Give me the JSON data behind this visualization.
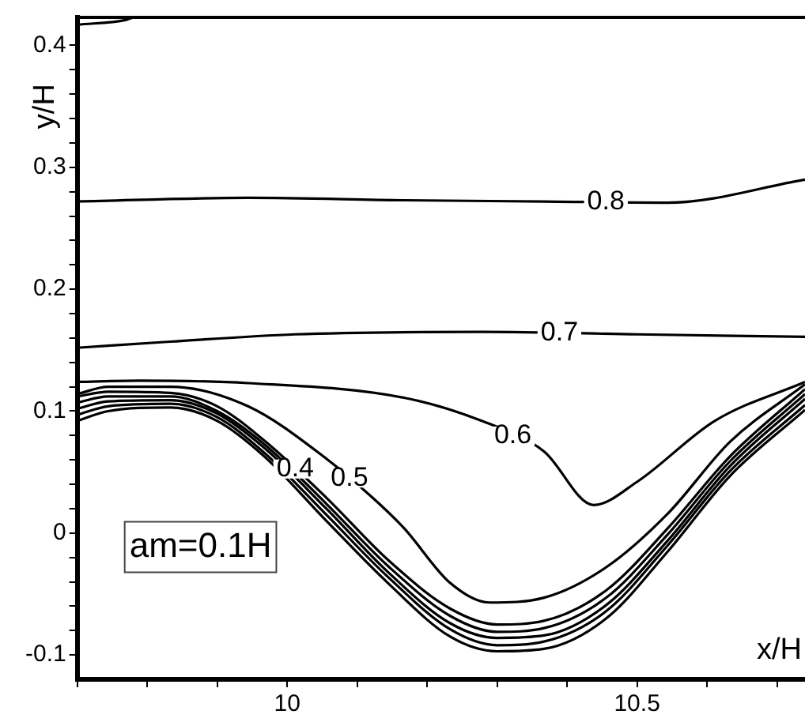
{
  "chart_data": {
    "type": "line",
    "xlabel": "x/H",
    "ylabel": "y/H",
    "xlim": [
      9.7,
      10.74
    ],
    "ylim": [
      -0.12,
      0.423
    ],
    "xticks": [
      {
        "value": 9.7,
        "label": null
      },
      {
        "value": 9.8,
        "label": null
      },
      {
        "value": 9.9,
        "label": null
      },
      10,
      {
        "value": 10.1,
        "label": null
      },
      {
        "value": 10.2,
        "label": null
      },
      {
        "value": 10.3,
        "label": null
      },
      {
        "value": 10.4,
        "label": null
      },
      10.5,
      {
        "value": 10.6,
        "label": null
      },
      {
        "value": 10.7,
        "label": null
      }
    ],
    "yticks": [
      -0.1,
      {
        "value": -0.08,
        "label": null
      },
      {
        "value": -0.06,
        "label": null
      },
      {
        "value": -0.04,
        "label": null
      },
      {
        "value": -0.02,
        "label": null
      },
      0,
      {
        "value": 0.02,
        "label": null
      },
      {
        "value": 0.04,
        "label": null
      },
      {
        "value": 0.06,
        "label": null
      },
      {
        "value": 0.08,
        "label": null
      },
      0.1,
      {
        "value": 0.12,
        "label": null
      },
      {
        "value": 0.14,
        "label": null
      },
      {
        "value": 0.16,
        "label": null
      },
      {
        "value": 0.18,
        "label": null
      },
      0.2,
      {
        "value": 0.22,
        "label": null
      },
      {
        "value": 0.24,
        "label": null
      },
      {
        "value": 0.26,
        "label": null
      },
      {
        "value": 0.28,
        "label": null
      },
      0.3,
      {
        "value": 0.32,
        "label": null
      },
      {
        "value": 0.34,
        "label": null
      },
      {
        "value": 0.36,
        "label": null
      },
      {
        "value": 0.38,
        "label": null
      },
      0.4
    ],
    "grid": false,
    "legend": false,
    "marker": "none",
    "line_style": "solid",
    "annotations": [
      "am=0.1H"
    ],
    "series": [
      {
        "color": "#000000",
        "x": [
          9.7,
          9.77,
          9.78
        ],
        "values": [
          0.417,
          0.421,
          0.423
        ]
      },
      {
        "name": "0.8",
        "color": "#000000",
        "x": [
          9.7,
          9.944,
          10.167,
          10.367,
          10.544,
          10.74
        ],
        "values": [
          0.272,
          0.275,
          0.273,
          0.272,
          0.271,
          0.29
        ]
      },
      {
        "name": "0.7",
        "color": "#000000",
        "x": [
          9.7,
          9.833,
          10.011,
          10.278,
          10.5,
          10.74
        ],
        "values": [
          0.152,
          0.157,
          0.163,
          0.165,
          0.163,
          0.161
        ]
      },
      {
        "name": "0.6",
        "color": "#000000",
        "x": [
          9.7,
          9.789,
          9.944,
          10.167,
          10.278,
          10.367,
          10.438,
          10.5,
          10.611,
          10.74
        ],
        "values": [
          0.124,
          0.125,
          0.123,
          0.111,
          0.092,
          0.067,
          0.023,
          0.042,
          0.092,
          0.124
        ]
      },
      {
        "name": "0.5",
        "color": "#000000",
        "x": [
          9.7,
          9.744,
          9.833,
          9.944,
          10.056,
          10.122,
          10.167,
          10.233,
          10.289,
          10.367,
          10.456,
          10.544,
          10.633,
          10.74
        ],
        "values": [
          0.114,
          0.12,
          0.12,
          0.104,
          0.061,
          0.029,
          0.004,
          -0.041,
          -0.057,
          -0.053,
          -0.028,
          0.016,
          0.075,
          0.122
        ]
      },
      {
        "name": "0.4",
        "color": "#000000",
        "x": [
          9.7,
          9.744,
          9.833,
          9.9,
          9.967,
          10.056,
          10.144,
          10.233,
          10.3,
          10.367,
          10.456,
          10.544,
          10.633,
          10.74
        ],
        "values": [
          0.112,
          0.116,
          0.115,
          0.104,
          0.076,
          0.029,
          -0.022,
          -0.062,
          -0.075,
          -0.072,
          -0.047,
          0.004,
          0.063,
          0.118
        ]
      },
      {
        "color": "#000000",
        "x": [
          9.7,
          9.744,
          9.833,
          9.9,
          9.967,
          10.056,
          10.144,
          10.233,
          10.3,
          10.367,
          10.456,
          10.544,
          10.633,
          10.74
        ],
        "values": [
          0.107,
          0.112,
          0.112,
          0.1,
          0.073,
          0.024,
          -0.027,
          -0.068,
          -0.081,
          -0.078,
          -0.053,
          -0.001,
          0.059,
          0.114
        ]
      },
      {
        "color": "#000000",
        "x": [
          9.7,
          9.744,
          9.833,
          9.9,
          9.967,
          10.056,
          10.144,
          10.233,
          10.3,
          10.367,
          10.456,
          10.544,
          10.633,
          10.74
        ],
        "values": [
          0.102,
          0.108,
          0.109,
          0.098,
          0.07,
          0.02,
          -0.032,
          -0.074,
          -0.086,
          -0.084,
          -0.059,
          -0.006,
          0.055,
          0.11
        ]
      },
      {
        "color": "#000000",
        "x": [
          9.7,
          9.744,
          9.833,
          9.9,
          9.967,
          10.056,
          10.144,
          10.233,
          10.3,
          10.367,
          10.456,
          10.544,
          10.633,
          10.74
        ],
        "values": [
          0.097,
          0.104,
          0.106,
          0.095,
          0.066,
          0.015,
          -0.036,
          -0.079,
          -0.092,
          -0.089,
          -0.064,
          -0.01,
          0.051,
          0.105
        ]
      },
      {
        "color": "#000000",
        "x": [
          9.7,
          9.744,
          9.833,
          9.9,
          9.967,
          10.056,
          10.144,
          10.233,
          10.3,
          10.367,
          10.456,
          10.544,
          10.633,
          10.74
        ],
        "values": [
          0.092,
          0.1,
          0.103,
          0.092,
          0.063,
          0.01,
          -0.041,
          -0.085,
          -0.097,
          -0.095,
          -0.07,
          -0.015,
          0.047,
          0.101
        ]
      }
    ]
  }
}
